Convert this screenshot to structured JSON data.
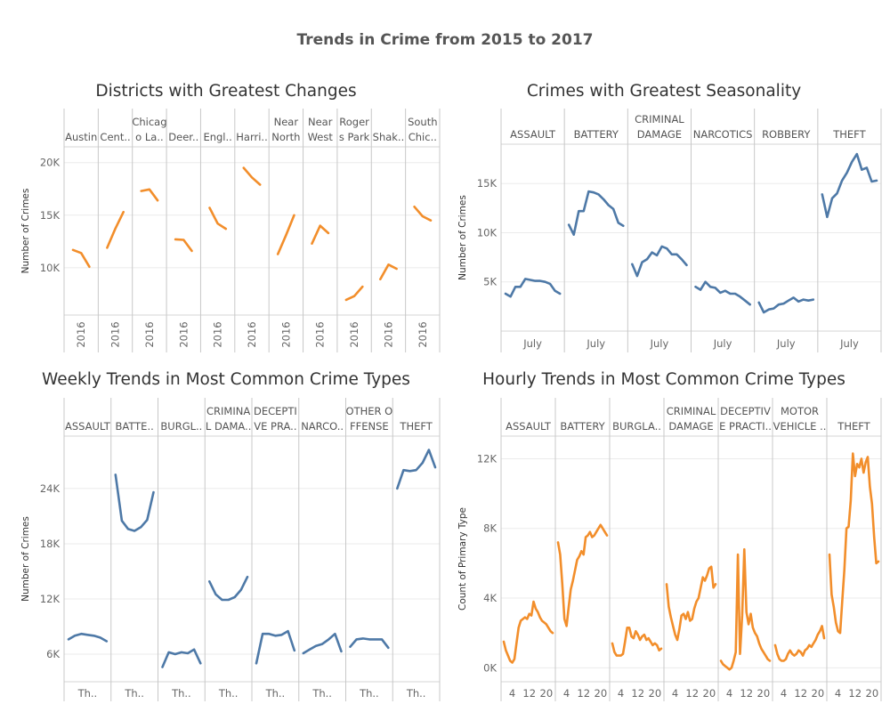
{
  "dashboard": {
    "title": "Trends in Crime from 2015 to 2017"
  },
  "colors": {
    "orange": "#f28e2b",
    "blue": "#4e79a7"
  },
  "chart_data": [
    {
      "id": "districts",
      "type": "line",
      "title": "Districts with Greatest Changes",
      "ylabel": "Number of Crimes",
      "xlabel": "",
      "ylim": [
        5500,
        21500
      ],
      "yticks": [
        10000,
        15000,
        20000
      ],
      "ytick_labels": [
        "10K",
        "15K",
        "20K"
      ],
      "color": "orange",
      "x_tick_label": "2016",
      "panels": [
        {
          "label": [
            "Austin"
          ],
          "values": [
            11700,
            11400,
            10100
          ]
        },
        {
          "label": [
            "Cent.."
          ],
          "values": [
            11900,
            13700,
            15300
          ]
        },
        {
          "label": [
            "Chicag",
            "o La.."
          ],
          "values": [
            17300,
            17450,
            16400
          ]
        },
        {
          "label": [
            "Deer.."
          ],
          "values": [
            12700,
            12650,
            11600
          ]
        },
        {
          "label": [
            "Engl.."
          ],
          "values": [
            15700,
            14200,
            13700
          ]
        },
        {
          "label": [
            "Harri.."
          ],
          "values": [
            19500,
            18600,
            17900
          ]
        },
        {
          "label": [
            "Near",
            "North"
          ],
          "values": [
            11300,
            13100,
            15000
          ]
        },
        {
          "label": [
            "Near",
            "West"
          ],
          "values": [
            12300,
            14000,
            13300
          ]
        },
        {
          "label": [
            "Roger",
            "s Park"
          ],
          "values": [
            6950,
            7300,
            8200
          ]
        },
        {
          "label": [
            "Shak.."
          ],
          "values": [
            8900,
            10300,
            9900
          ]
        },
        {
          "label": [
            "South",
            "Chic.."
          ],
          "values": [
            15800,
            14900,
            14500
          ]
        }
      ]
    },
    {
      "id": "seasonality",
      "type": "line",
      "title": "Crimes with Greatest Seasonality",
      "ylabel": "Number of Crimes",
      "xlabel": "",
      "ylim": [
        0,
        19000
      ],
      "yticks": [
        5000,
        10000,
        15000
      ],
      "ytick_labels": [
        "5K",
        "10K",
        "15K"
      ],
      "color": "blue",
      "x_tick_label": "July",
      "panels": [
        {
          "label": [
            "ASSAULT"
          ],
          "values": [
            3800,
            3500,
            4500,
            4500,
            5300,
            5200,
            5100,
            5100,
            5000,
            4800,
            4100,
            3800
          ]
        },
        {
          "label": [
            "BATTERY"
          ],
          "values": [
            10800,
            9800,
            12200,
            12200,
            14200,
            14100,
            13900,
            13400,
            12800,
            12400,
            11000,
            10700
          ]
        },
        {
          "label": [
            "CRIMINAL",
            "DAMAGE"
          ],
          "values": [
            6800,
            5600,
            7000,
            7300,
            8000,
            7700,
            8600,
            8400,
            7800,
            7800,
            7300,
            6700
          ]
        },
        {
          "label": [
            "NARCOTICS"
          ],
          "values": [
            4500,
            4200,
            5000,
            4500,
            4400,
            3900,
            4100,
            3800,
            3800,
            3500,
            3100,
            2700
          ]
        },
        {
          "label": [
            "ROBBERY"
          ],
          "values": [
            2900,
            1900,
            2200,
            2300,
            2700,
            2800,
            3100,
            3400,
            3000,
            3200,
            3100,
            3200
          ]
        },
        {
          "label": [
            "THEFT"
          ],
          "values": [
            13900,
            11600,
            13500,
            14000,
            15300,
            16100,
            17200,
            18000,
            16400,
            16600,
            15200,
            15300
          ]
        }
      ]
    },
    {
      "id": "weekly",
      "type": "line",
      "title": "Weekly Trends in Most Common Crime Types",
      "ylabel": "Number of Crimes",
      "xlabel": "",
      "ylim": [
        3000,
        29700
      ],
      "yticks": [
        6000,
        12000,
        18000,
        24000
      ],
      "ytick_labels": [
        "6K",
        "12K",
        "18K",
        "24K"
      ],
      "color": "blue",
      "x_tick_label": "Th..",
      "panels": [
        {
          "label": [
            "ASSAULT"
          ],
          "values": [
            7600,
            8000,
            8200,
            8100,
            8000,
            7800,
            7400
          ]
        },
        {
          "label": [
            "BATTE.."
          ],
          "values": [
            25500,
            20500,
            19600,
            19400,
            19800,
            20600,
            23600
          ]
        },
        {
          "label": [
            "BURGL.."
          ],
          "values": [
            4600,
            6200,
            6000,
            6200,
            6100,
            6500,
            5000
          ]
        },
        {
          "label": [
            "CRIMINA",
            "L DAMA.."
          ],
          "values": [
            13900,
            12500,
            11900,
            11900,
            12200,
            13000,
            14400
          ]
        },
        {
          "label": [
            "DECEPTI",
            "VE PRA.."
          ],
          "values": [
            5000,
            8200,
            8200,
            8000,
            8100,
            8500,
            6400
          ]
        },
        {
          "label": [
            "NARCO.."
          ],
          "values": [
            6100,
            6500,
            6900,
            7100,
            7600,
            8200,
            6300
          ]
        },
        {
          "label": [
            "OTHER O",
            "FFENSE"
          ],
          "values": [
            6800,
            7600,
            7700,
            7600,
            7600,
            7600,
            6700
          ]
        },
        {
          "label": [
            "THEFT"
          ],
          "values": [
            24000,
            26000,
            25900,
            26000,
            26800,
            28200,
            26300
          ]
        }
      ]
    },
    {
      "id": "hourly",
      "type": "line",
      "title": "Hourly Trends in Most Common Crime Types",
      "ylabel": "Count of Primary Type",
      "xlabel": "",
      "ylim": [
        -800,
        13300
      ],
      "yticks": [
        0,
        4000,
        8000,
        12000
      ],
      "ytick_labels": [
        "0K",
        "4K",
        "8K",
        "12K"
      ],
      "color": "orange",
      "x_tick_labels": [
        "4",
        "12",
        "20"
      ],
      "x_tick_hours": [
        4,
        12,
        20
      ],
      "panels": [
        {
          "label": [
            "ASSAULT"
          ],
          "values": [
            1500,
            1000,
            700,
            400,
            300,
            500,
            1400,
            2300,
            2700,
            2800,
            2900,
            2800,
            3100,
            3000,
            3800,
            3400,
            3200,
            2900,
            2700,
            2600,
            2500,
            2300,
            2100,
            2000
          ]
        },
        {
          "label": [
            "BATTERY"
          ],
          "values": [
            7200,
            6500,
            4800,
            2800,
            2400,
            3500,
            4500,
            5000,
            5600,
            6200,
            6400,
            6700,
            6500,
            7500,
            7600,
            7800,
            7500,
            7600,
            7800,
            8000,
            8200,
            8000,
            7800,
            7600
          ]
        },
        {
          "label": [
            "BURGLA.."
          ],
          "values": [
            1400,
            900,
            700,
            700,
            700,
            800,
            1500,
            2300,
            2300,
            1800,
            1700,
            2100,
            1900,
            1600,
            1800,
            1900,
            1600,
            1700,
            1500,
            1300,
            1400,
            1300,
            1000,
            1100
          ]
        },
        {
          "label": [
            "CRIMINAL",
            "DAMAGE"
          ],
          "values": [
            4800,
            3500,
            2900,
            2400,
            1900,
            1600,
            2200,
            3000,
            3100,
            2800,
            3200,
            2700,
            2800,
            3400,
            3800,
            4000,
            4600,
            5200,
            5000,
            5300,
            5700,
            5800,
            4600,
            4800
          ]
        },
        {
          "label": [
            "DECEPTIV",
            "E PRACTI.."
          ],
          "values": [
            400,
            200,
            100,
            0,
            -100,
            0,
            400,
            900,
            6500,
            800,
            3000,
            6800,
            3200,
            2500,
            3100,
            2300,
            2000,
            1800,
            1400,
            1100,
            900,
            700,
            500,
            400
          ]
        },
        {
          "label": [
            "MOTOR",
            "VEHICLE .."
          ],
          "values": [
            1300,
            800,
            500,
            400,
            400,
            500,
            800,
            1000,
            800,
            700,
            800,
            1000,
            900,
            700,
            1000,
            1100,
            1300,
            1200,
            1400,
            1600,
            1900,
            2100,
            2400,
            1700
          ]
        },
        {
          "label": [
            "THEFT"
          ],
          "values": [
            6500,
            4200,
            3500,
            2600,
            2100,
            2000,
            3800,
            5600,
            8000,
            8100,
            9600,
            12300,
            11000,
            11700,
            11500,
            12000,
            11200,
            11800,
            12100,
            10400,
            9400,
            7500,
            6000,
            6100
          ]
        }
      ]
    }
  ]
}
